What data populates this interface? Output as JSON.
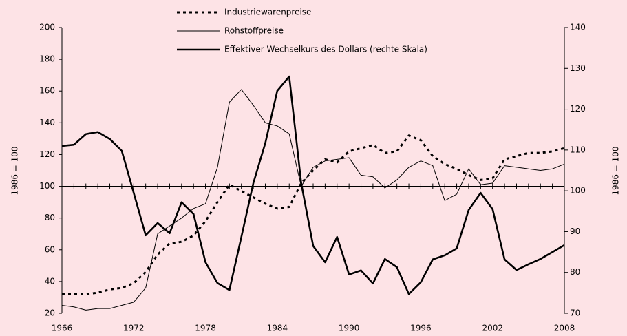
{
  "chart_data": {
    "type": "line",
    "x": [
      1966,
      1967,
      1968,
      1969,
      1970,
      1971,
      1972,
      1973,
      1974,
      1975,
      1976,
      1977,
      1978,
      1979,
      1980,
      1981,
      1982,
      1983,
      1984,
      1985,
      1986,
      1987,
      1988,
      1989,
      1990,
      1991,
      1992,
      1993,
      1994,
      1995,
      1996,
      1997,
      1998,
      1999,
      2000,
      2001,
      2002,
      2003,
      2004,
      2005,
      2006,
      2007,
      2008
    ],
    "xlim": [
      1966,
      2008
    ],
    "xticks": [
      1966,
      1972,
      1978,
      1984,
      1990,
      1996,
      2002,
      2008
    ],
    "ylim": [
      20,
      200
    ],
    "yticks": [
      20,
      40,
      60,
      80,
      100,
      120,
      140,
      160,
      180,
      200
    ],
    "y2lim": [
      70,
      140
    ],
    "y2ticks": [
      70,
      80,
      90,
      100,
      110,
      120,
      130,
      140
    ],
    "ylabel": "1986 = 100",
    "y2label": "1986 = 100",
    "baseline": 100,
    "series": [
      {
        "name": "Industriewarenpreise",
        "color": "#000000",
        "style": "dotted",
        "values": [
          32,
          32,
          32,
          33,
          35,
          36,
          39,
          46,
          57,
          64,
          65,
          69,
          78,
          90,
          101,
          97,
          93,
          89,
          86,
          87,
          102,
          110,
          117,
          115,
          122,
          124,
          126,
          121,
          122,
          132,
          129,
          119,
          114,
          111,
          107,
          104,
          105,
          117,
          119,
          121,
          121,
          122,
          124
        ]
      },
      {
        "name": "Rohstoffpreise",
        "color": "#000000",
        "style": "thin",
        "values": [
          25,
          24,
          22,
          23,
          23,
          25,
          27,
          36,
          70,
          75,
          80,
          86,
          89,
          112,
          153,
          161,
          151,
          140,
          138,
          133,
          100,
          112,
          116,
          117,
          118,
          107,
          106,
          99,
          104,
          112,
          116,
          113,
          91,
          95,
          111,
          101,
          102,
          113,
          112,
          111,
          110,
          111,
          114
        ]
      },
      {
        "name": "Effektiver Wechselkurs des Dollars (rechte Skala)",
        "color": "#000000",
        "style": "thick",
        "axis": "y2",
        "values": [
          111,
          111.3,
          113.9,
          114.4,
          112.7,
          109.8,
          99.5,
          89.1,
          92.1,
          89.6,
          97.2,
          94.3,
          82.5,
          77.4,
          75.7,
          88.7,
          101.9,
          111.7,
          124.5,
          128,
          101.9,
          86.5,
          82.5,
          88.7,
          79.5,
          80.5,
          77.3,
          83.3,
          81.3,
          74.7,
          77.6,
          83.2,
          84.2,
          85.9,
          95.3,
          99.5,
          95.5,
          83.2,
          80.6,
          82,
          83.3,
          85,
          86.7
        ]
      }
    ]
  }
}
